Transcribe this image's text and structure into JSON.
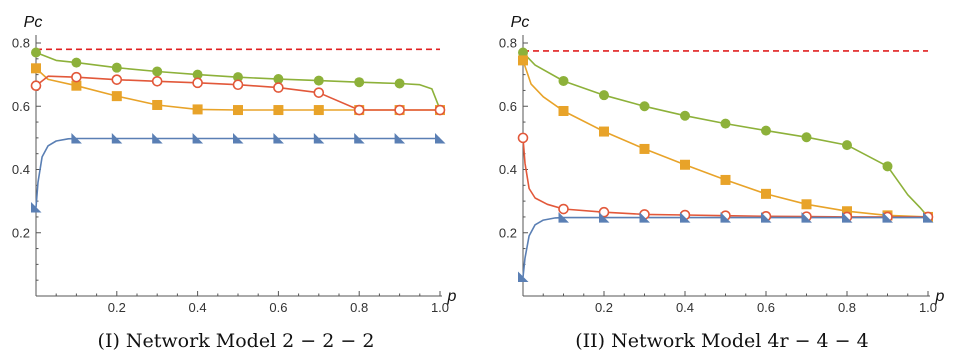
{
  "colors": {
    "green": "#8DB13A",
    "orange": "#E8A329",
    "red": "#E2583A",
    "blue": "#5A7FB4",
    "dashed": "#E02020",
    "axis": "#555555"
  },
  "chart_data": [
    {
      "type": "line",
      "caption": "(I) Network Model 2 − 2 − 2",
      "xlabel": "p",
      "ylabel": "Pc",
      "xlim": [
        0,
        1
      ],
      "ylim": [
        0,
        0.8
      ],
      "xticks": [
        0.2,
        0.4,
        0.6,
        0.8,
        1.0
      ],
      "xtick_labels": [
        "0.2",
        "0.4",
        "0.6",
        "0.8",
        "1.0"
      ],
      "yticks": [
        0.2,
        0.4,
        0.6,
        0.8
      ],
      "ytick_labels": [
        "0.2",
        "0.4",
        "0.6",
        "0.8"
      ],
      "grid": false,
      "reference_line": {
        "y": 0.78,
        "style": "dashed",
        "color": "#E02020"
      },
      "series": [
        {
          "marker": "circle-filled",
          "color": "#8DB13A",
          "curve": {
            "x": [
              0,
              0.05,
              0.1,
              0.2,
              0.3,
              0.4,
              0.5,
              0.6,
              0.7,
              0.8,
              0.9,
              0.95,
              0.98,
              1.0
            ],
            "y": [
              0.77,
              0.745,
              0.738,
              0.722,
              0.71,
              0.7,
              0.692,
              0.686,
              0.681,
              0.676,
              0.672,
              0.668,
              0.655,
              0.59
            ]
          },
          "markers": {
            "x": [
              0,
              0.1,
              0.2,
              0.3,
              0.4,
              0.5,
              0.6,
              0.7,
              0.8,
              0.9
            ],
            "y": [
              0.77,
              0.738,
              0.722,
              0.71,
              0.7,
              0.692,
              0.686,
              0.681,
              0.676,
              0.672
            ]
          }
        },
        {
          "marker": "square-filled",
          "color": "#E8A329",
          "curve": {
            "x": [
              0,
              0.03,
              0.1,
              0.2,
              0.3,
              0.4,
              0.5,
              0.6,
              0.7,
              0.8,
              0.9,
              1.0
            ],
            "y": [
              0.72,
              0.685,
              0.665,
              0.632,
              0.604,
              0.59,
              0.588,
              0.588,
              0.588,
              0.588,
              0.588,
              0.588
            ]
          },
          "markers": {
            "x": [
              0,
              0.1,
              0.2,
              0.3,
              0.4,
              0.5,
              0.6,
              0.7,
              0.8,
              0.9,
              1.0
            ],
            "y": [
              0.72,
              0.665,
              0.632,
              0.604,
              0.59,
              0.588,
              0.588,
              0.588,
              0.588,
              0.588,
              0.588
            ]
          }
        },
        {
          "marker": "circle-open",
          "color": "#E2583A",
          "curve": {
            "x": [
              0,
              0.03,
              0.1,
              0.2,
              0.3,
              0.4,
              0.5,
              0.6,
              0.7,
              0.8,
              0.9,
              1.0
            ],
            "y": [
              0.665,
              0.695,
              0.692,
              0.684,
              0.679,
              0.674,
              0.668,
              0.659,
              0.643,
              0.588,
              0.588,
              0.588
            ]
          },
          "markers": {
            "x": [
              0,
              0.1,
              0.2,
              0.3,
              0.4,
              0.5,
              0.6,
              0.7,
              0.8,
              0.9,
              1.0
            ],
            "y": [
              0.665,
              0.692,
              0.684,
              0.679,
              0.674,
              0.668,
              0.659,
              0.643,
              0.588,
              0.588,
              0.588
            ]
          }
        },
        {
          "marker": "triangle-filled",
          "color": "#5A7FB4",
          "curve": {
            "x": [
              0,
              0.005,
              0.015,
              0.03,
              0.05,
              0.08,
              0.1,
              0.2,
              0.3,
              0.4,
              0.5,
              0.6,
              0.7,
              0.8,
              0.9,
              1.0
            ],
            "y": [
              0.28,
              0.36,
              0.44,
              0.475,
              0.49,
              0.497,
              0.498,
              0.498,
              0.498,
              0.498,
              0.498,
              0.498,
              0.498,
              0.498,
              0.498,
              0.498
            ]
          },
          "markers": {
            "x": [
              0,
              0.1,
              0.2,
              0.3,
              0.4,
              0.5,
              0.6,
              0.7,
              0.8,
              0.9,
              1.0
            ],
            "y": [
              0.28,
              0.498,
              0.498,
              0.498,
              0.498,
              0.498,
              0.498,
              0.498,
              0.498,
              0.498,
              0.498
            ]
          }
        }
      ]
    },
    {
      "type": "line",
      "caption": "(II) Network Model 4r − 4 − 4",
      "xlabel": "p",
      "ylabel": "Pc",
      "xlim": [
        0,
        1
      ],
      "ylim": [
        0,
        0.8
      ],
      "xticks": [
        0.2,
        0.4,
        0.6,
        0.8,
        1.0
      ],
      "xtick_labels": [
        "0.2",
        "0.4",
        "0.6",
        "0.8",
        "1.0"
      ],
      "yticks": [
        0.2,
        0.4,
        0.6,
        0.8
      ],
      "ytick_labels": [
        "0.2",
        "0.4",
        "0.6",
        "0.8"
      ],
      "grid": false,
      "reference_line": {
        "y": 0.775,
        "style": "dashed",
        "color": "#E02020"
      },
      "series": [
        {
          "marker": "circle-filled",
          "color": "#8DB13A",
          "curve": {
            "x": [
              0,
              0.03,
              0.1,
              0.2,
              0.3,
              0.4,
              0.5,
              0.6,
              0.7,
              0.8,
              0.9,
              0.95,
              0.98,
              1.0
            ],
            "y": [
              0.77,
              0.73,
              0.68,
              0.635,
              0.6,
              0.57,
              0.545,
              0.523,
              0.502,
              0.477,
              0.41,
              0.32,
              0.28,
              0.25
            ]
          },
          "markers": {
            "x": [
              0,
              0.1,
              0.2,
              0.3,
              0.4,
              0.5,
              0.6,
              0.7,
              0.8,
              0.9
            ],
            "y": [
              0.77,
              0.68,
              0.635,
              0.6,
              0.57,
              0.545,
              0.523,
              0.502,
              0.477,
              0.41
            ]
          }
        },
        {
          "marker": "square-filled",
          "color": "#E8A329",
          "curve": {
            "x": [
              0,
              0.02,
              0.05,
              0.1,
              0.2,
              0.3,
              0.4,
              0.5,
              0.6,
              0.7,
              0.8,
              0.9,
              1.0
            ],
            "y": [
              0.745,
              0.67,
              0.63,
              0.585,
              0.52,
              0.465,
              0.415,
              0.367,
              0.323,
              0.29,
              0.268,
              0.255,
              0.25
            ]
          },
          "markers": {
            "x": [
              0,
              0.1,
              0.2,
              0.3,
              0.4,
              0.5,
              0.6,
              0.7,
              0.8,
              0.9,
              1.0
            ],
            "y": [
              0.745,
              0.585,
              0.52,
              0.465,
              0.415,
              0.367,
              0.323,
              0.29,
              0.268,
              0.255,
              0.25
            ]
          }
        },
        {
          "marker": "circle-open",
          "color": "#E2583A",
          "curve": {
            "x": [
              0,
              0.005,
              0.015,
              0.03,
              0.06,
              0.1,
              0.2,
              0.3,
              0.4,
              0.5,
              0.6,
              0.7,
              0.8,
              0.9,
              1.0
            ],
            "y": [
              0.5,
              0.42,
              0.34,
              0.31,
              0.29,
              0.275,
              0.265,
              0.258,
              0.256,
              0.254,
              0.252,
              0.251,
              0.25,
              0.25,
              0.25
            ]
          },
          "markers": {
            "x": [
              0,
              0.1,
              0.2,
              0.3,
              0.4,
              0.5,
              0.6,
              0.7,
              0.8,
              0.9,
              1.0
            ],
            "y": [
              0.5,
              0.275,
              0.265,
              0.258,
              0.256,
              0.254,
              0.252,
              0.251,
              0.25,
              0.25,
              0.25
            ]
          }
        },
        {
          "marker": "triangle-filled",
          "color": "#5A7FB4",
          "curve": {
            "x": [
              0,
              0.005,
              0.015,
              0.03,
              0.05,
              0.08,
              0.1,
              0.2,
              0.3,
              0.4,
              0.5,
              0.6,
              0.7,
              0.8,
              0.9,
              1.0
            ],
            "y": [
              0.06,
              0.12,
              0.19,
              0.225,
              0.24,
              0.247,
              0.248,
              0.248,
              0.248,
              0.248,
              0.248,
              0.248,
              0.248,
              0.248,
              0.248,
              0.248
            ]
          },
          "markers": {
            "x": [
              0,
              0.1,
              0.2,
              0.3,
              0.4,
              0.5,
              0.6,
              0.7,
              0.8,
              0.9,
              1.0
            ],
            "y": [
              0.06,
              0.248,
              0.248,
              0.248,
              0.248,
              0.248,
              0.248,
              0.248,
              0.248,
              0.248,
              0.248
            ]
          }
        }
      ]
    }
  ]
}
